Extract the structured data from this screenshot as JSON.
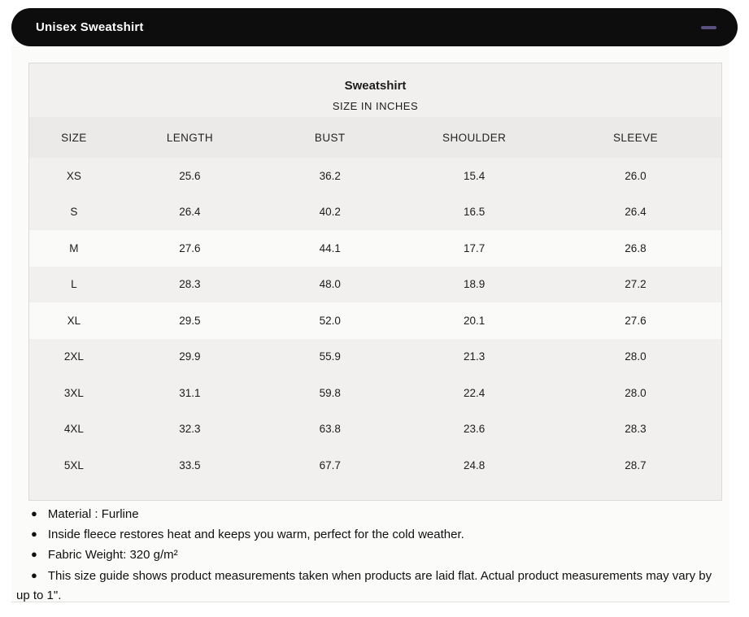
{
  "accordion": {
    "title": "Unisex Sweatshirt",
    "state": "expanded",
    "collapse_icon": "minus-icon"
  },
  "colors": {
    "header_bar_bg": "#0d0d0d",
    "header_bar_text": "#ffffff",
    "minus_icon": "#5b5180",
    "table_bg": "#f1f0ee",
    "column_header_bg": "#ebeae8",
    "highlight_row_bg": "#fafaf9",
    "text": "#1c1c1c"
  },
  "sizeTable": {
    "title": "Sweatshirt",
    "subtitle": "SIZE IN INCHES",
    "columns": [
      "SIZE",
      "LENGTH",
      "BUST",
      "SHOULDER",
      "SLEEVE"
    ],
    "rows": [
      [
        "XS",
        "25.6",
        "36.2",
        "15.4",
        "26.0"
      ],
      [
        "S",
        "26.4",
        "40.2",
        "16.5",
        "26.4"
      ],
      [
        "M",
        "27.6",
        "44.1",
        "17.7",
        "26.8"
      ],
      [
        "L",
        "28.3",
        "48.0",
        "18.9",
        "27.2"
      ],
      [
        "XL",
        "29.5",
        "52.0",
        "20.1",
        "27.6"
      ],
      [
        "2XL",
        "29.9",
        "55.9",
        "21.3",
        "28.0"
      ],
      [
        "3XL",
        "31.1",
        "59.8",
        "22.4",
        "28.0"
      ],
      [
        "4XL",
        "32.3",
        "63.8",
        "23.6",
        "28.3"
      ],
      [
        "5XL",
        "33.5",
        "67.7",
        "24.8",
        "28.7"
      ]
    ],
    "highlighted_rows": [
      "M",
      "XL"
    ]
  },
  "notes": [
    "Material : Furline",
    "Inside fleece restores heat and keeps you warm, perfect for the cold weather.",
    "Fabric Weight: 320 g/m²",
    "This size guide shows product measurements taken when products are laid flat. Actual product measurements may vary by up to 1\"."
  ]
}
